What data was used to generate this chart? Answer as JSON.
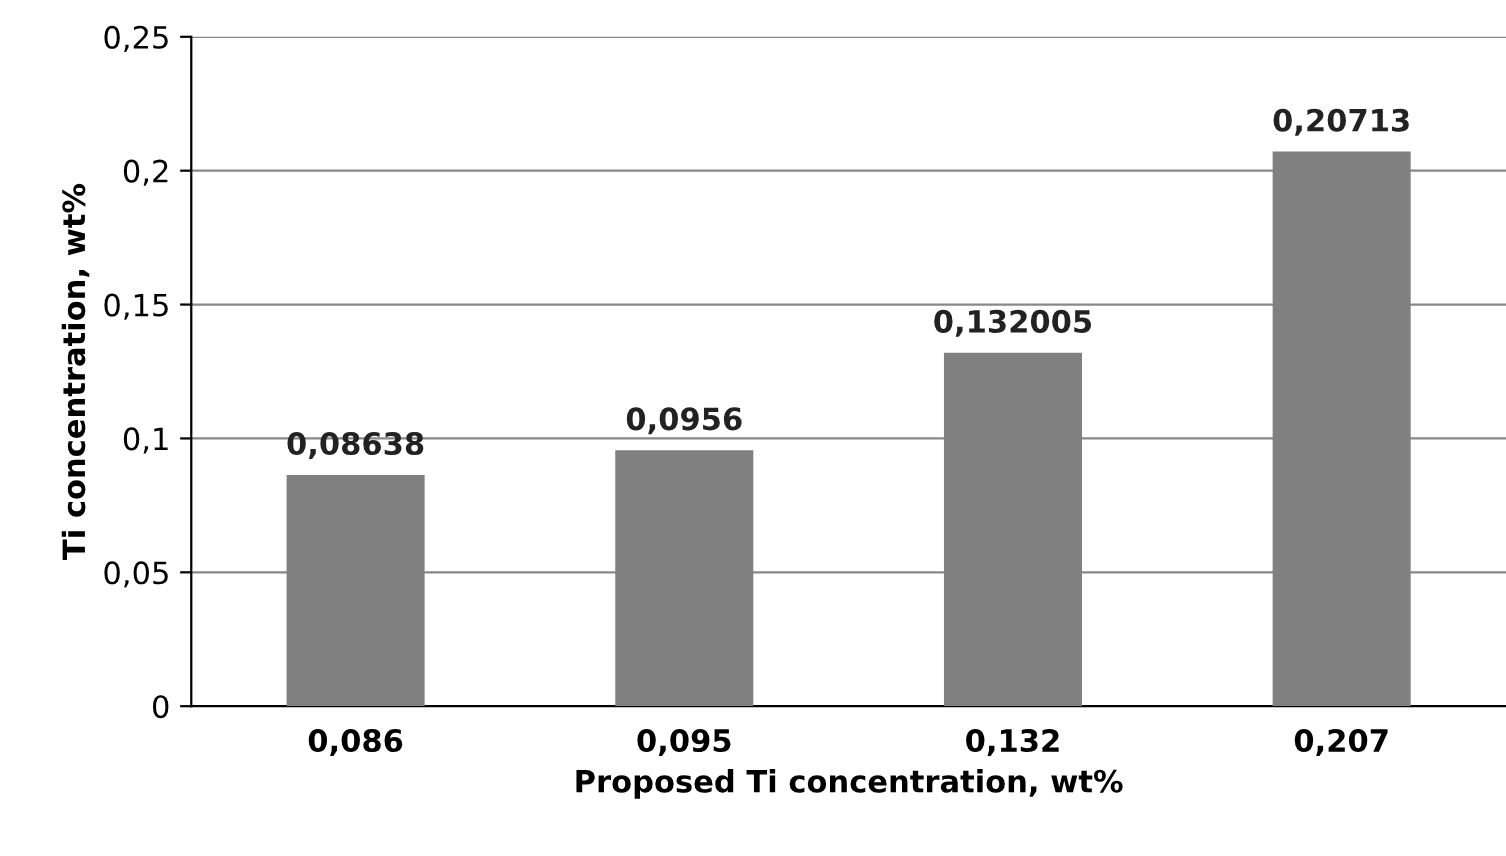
{
  "chart_data": {
    "type": "bar",
    "xlabel": "Proposed Ti concentration, wt%",
    "ylabel": "Ti concentration, wt%",
    "categories": [
      "0,086",
      "0,095",
      "0,132",
      "0,207"
    ],
    "values": [
      0.08638,
      0.0956,
      0.132005,
      0.20713
    ],
    "value_labels": [
      "0,08638",
      "0,0956",
      "0,132005",
      "0,20713"
    ],
    "color": "#808080",
    "ylim": [
      0,
      0.25
    ],
    "yticks": [
      0,
      {
        "value": 0.05,
        "label": "0,05"
      },
      {
        "value": 0.1,
        "label": "0,1"
      },
      {
        "value": 0.15,
        "label": "0,15"
      },
      {
        "value": 0.2,
        "label": "0,2"
      },
      {
        "value": 0.25,
        "label": "0,25"
      }
    ],
    "grid": "y"
  }
}
